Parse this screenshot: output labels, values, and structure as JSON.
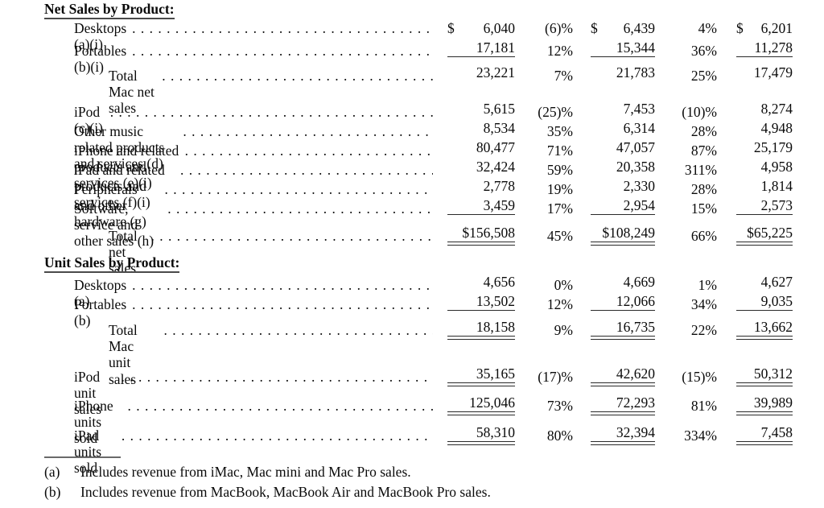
{
  "decor": {
    "dot_leader": ". . . . . . . . . . . . . . . . . . . . . . . . . . . . . . . . . . . . . . . . . . . . . . . . . . . . . . . . . . . . . . . . . . . . . . . ."
  },
  "table": {
    "section_headers": {
      "net_sales": "Net Sales by Product:",
      "unit_sales": "Unit Sales by Product:"
    },
    "rows": [
      {
        "label": "Desktops (a)(i)",
        "d1": "$",
        "v1": "6,040",
        "p1": "(6)%",
        "d2": "$",
        "v2": "6,439",
        "p2": "4%",
        "d3": "$",
        "v3": "6,201"
      },
      {
        "label": "Portables (b)(i)",
        "v1": "17,181",
        "p1": "12%",
        "v2": "15,344",
        "p2": "36%",
        "v3": "11,278"
      },
      {
        "label": "Total Mac net sales",
        "v1": "23,221",
        "p1": "7%",
        "v2": "21,783",
        "p2": "25%",
        "v3": "17,479"
      },
      {
        "label": "iPod (c)(i)",
        "v1": "5,615",
        "p1": "(25)%",
        "v2": "7,453",
        "p2": "(10)%",
        "v3": "8,274"
      },
      {
        "label": "Other music related products and services (d)",
        "v1": "8,534",
        "p1": "35%",
        "v2": "6,314",
        "p2": "28%",
        "v3": "4,948"
      },
      {
        "label": "iPhone and related products and services (e)(i)",
        "v1": "80,477",
        "p1": "71%",
        "v2": "47,057",
        "p2": "87%",
        "v3": "25,179"
      },
      {
        "label": "iPad and related products and services (f)(i)",
        "v1": "32,424",
        "p1": "59%",
        "v2": "20,358",
        "p2": "311%",
        "v3": "4,958"
      },
      {
        "label": "Peripherals and other hardware (g)",
        "v1": "2,778",
        "p1": "19%",
        "v2": "2,330",
        "p2": "28%",
        "v3": "1,814"
      },
      {
        "label": "Software, service and other sales (h)",
        "v1": "3,459",
        "p1": "17%",
        "v2": "2,954",
        "p2": "15%",
        "v3": "2,573"
      },
      {
        "label": "Total net sales",
        "v1": "$156,508",
        "p1": "45%",
        "v2": "$108,249",
        "p2": "66%",
        "v3": "$65,225"
      },
      {
        "label": "Desktops (a)",
        "v1": "4,656",
        "p1": "0%",
        "v2": "4,669",
        "p2": "1%",
        "v3": "4,627"
      },
      {
        "label": "Portables (b)",
        "v1": "13,502",
        "p1": "12%",
        "v2": "12,066",
        "p2": "34%",
        "v3": "9,035"
      },
      {
        "label": "Total Mac unit sales",
        "v1": "18,158",
        "p1": "9%",
        "v2": "16,735",
        "p2": "22%",
        "v3": "13,662"
      },
      {
        "label": "iPod unit sales",
        "v1": "35,165",
        "p1": "(17)%",
        "v2": "42,620",
        "p2": "(15)%",
        "v3": "50,312"
      },
      {
        "label": "iPhone units sold",
        "v1": "125,046",
        "p1": "73%",
        "v2": "72,293",
        "p2": "81%",
        "v3": "39,989"
      },
      {
        "label": "iPad units sold",
        "v1": "58,310",
        "p1": "80%",
        "v2": "32,394",
        "p2": "334%",
        "v3": "7,458"
      }
    ]
  },
  "footnotes": {
    "items": [
      {
        "marker": "(a)",
        "text": "Includes revenue from iMac, Mac mini and Mac Pro sales."
      },
      {
        "marker": "(b)",
        "text": "Includes revenue from MacBook, MacBook Air and MacBook Pro sales."
      }
    ]
  }
}
